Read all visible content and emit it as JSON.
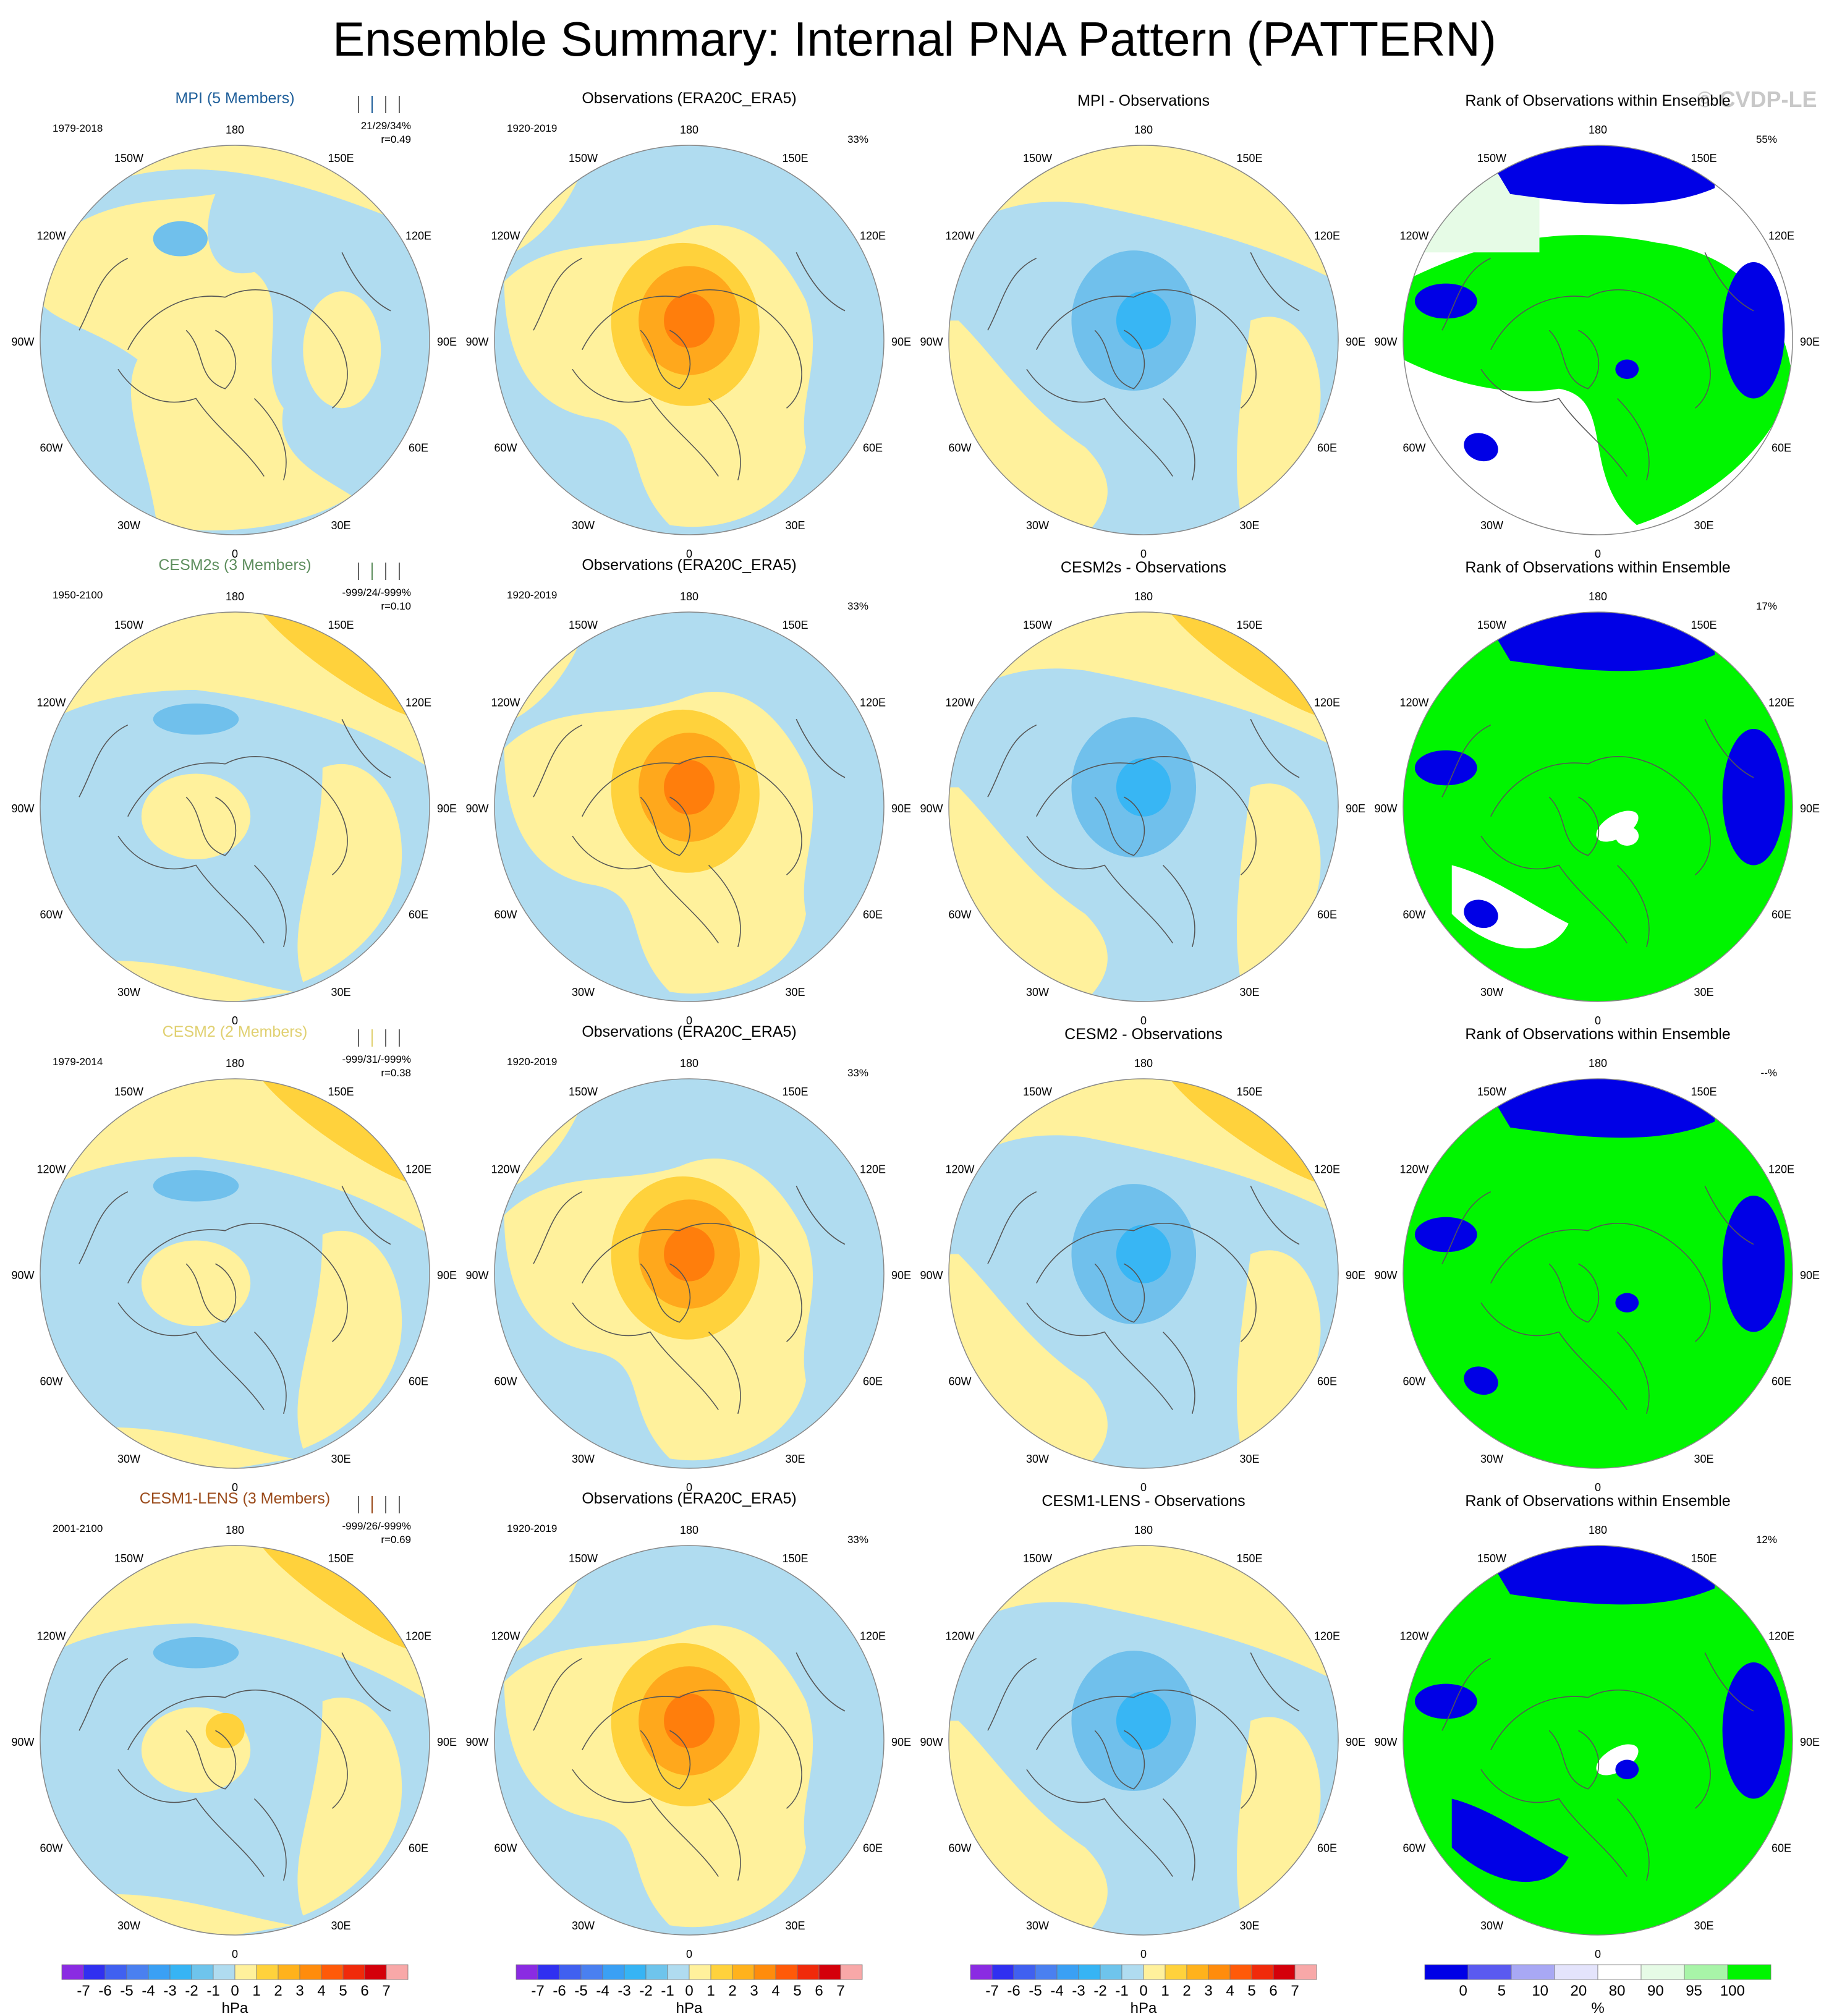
{
  "page": {
    "title": "Ensemble Summary: Internal PNA Pattern (PATTERN)",
    "watermark": "© CVDP-LE"
  },
  "colors": {
    "ocean_blue": "#b0dcf0",
    "pale_yellow": "#fff19c",
    "mid_blue": "#70c0ec",
    "light_orange": "#ffd23c",
    "orange": "#ffa81c",
    "dark_orange": "#ff7e0c",
    "cyan": "#38b6f4",
    "rank_green": "#00f500",
    "rank_blue": "#0000e6",
    "rank_pale_green": "#e6fbe6"
  },
  "lon_labels": [
    "180",
    "150E",
    "120E",
    "90E",
    "60E",
    "30E",
    "0",
    "30W",
    "60W",
    "90W",
    "120W",
    "150W"
  ],
  "rows": [
    {
      "model": {
        "title": "MPI (5 Members)",
        "title_color": "#1f5f9a",
        "period": "1979-2018",
        "stats": "21/29/34%",
        "corr": "r=0.49"
      },
      "obs": {
        "title": "Observations (ERA20C_ERA5)",
        "period": "1920-2019",
        "pct": "33%"
      },
      "diff": {
        "title": "MPI - Observations"
      },
      "rank": {
        "title": "Rank of Observations within Ensemble",
        "pct": "55%"
      }
    },
    {
      "model": {
        "title": "CESM2s (3 Members)",
        "title_color": "#5e8e5e",
        "period": "1950-2100",
        "stats": "-999/24/-999%",
        "corr": "r=0.10"
      },
      "obs": {
        "title": "Observations (ERA20C_ERA5)",
        "period": "1920-2019",
        "pct": "33%"
      },
      "diff": {
        "title": "CESM2s - Observations"
      },
      "rank": {
        "title": "Rank of Observations within Ensemble",
        "pct": "17%"
      }
    },
    {
      "model": {
        "title": "CESM2 (2 Members)",
        "title_color": "#e0d070",
        "period": "1979-2014",
        "stats": "-999/31/-999%",
        "corr": "r=0.38"
      },
      "obs": {
        "title": "Observations (ERA20C_ERA5)",
        "period": "1920-2019",
        "pct": "33%"
      },
      "diff": {
        "title": "CESM2 - Observations"
      },
      "rank": {
        "title": "Rank of Observations within Ensemble",
        "pct": "--%"
      }
    },
    {
      "model": {
        "title": "CESM1-LENS (3 Members)",
        "title_color": "#9a4a1a",
        "period": "2001-2100",
        "stats": "-999/26/-999%",
        "corr": "r=0.69"
      },
      "obs": {
        "title": "Observations (ERA20C_ERA5)",
        "period": "1920-2019",
        "pct": "33%"
      },
      "diff": {
        "title": "CESM1-LENS - Observations"
      },
      "rank": {
        "title": "Rank of Observations within Ensemble",
        "pct": "12%"
      }
    }
  ],
  "hpa_colorbar": {
    "labels": [
      "-7",
      "-6",
      "-5",
      "-4",
      "-3",
      "-2",
      "-1",
      "0",
      "1",
      "2",
      "3",
      "4",
      "5",
      "6",
      "7"
    ],
    "unit": "hPa",
    "colors": [
      "#8a2be2",
      "#3030f0",
      "#4060f0",
      "#4a80f0",
      "#3aa0f4",
      "#36b4f4",
      "#6ec4ec",
      "#b0dcf0",
      "#fff19c",
      "#ffd23c",
      "#ffb21c",
      "#ff8c0c",
      "#ff5a08",
      "#f02a0a",
      "#d4000a",
      "#f8a8a8"
    ]
  },
  "rank_colorbar": {
    "labels": [
      "0",
      "5",
      "10",
      "20",
      "80",
      "90",
      "95",
      "100"
    ],
    "unit": "%",
    "colors": [
      "#0000e6",
      "#5a5af0",
      "#a8a8f4",
      "#e4e4fc",
      "#ffffff",
      "#e6fbe6",
      "#a8f4a8",
      "#00f500"
    ]
  }
}
